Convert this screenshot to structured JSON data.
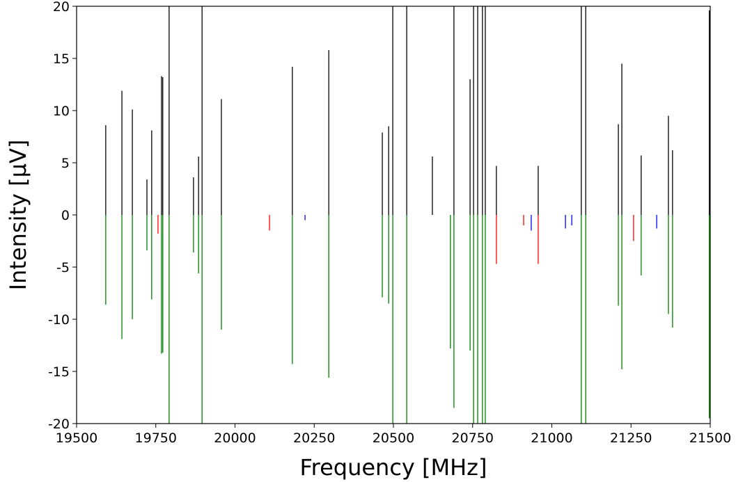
{
  "chart_data": {
    "type": "stick",
    "xlabel": "Frequency [MHz]",
    "ylabel": "Intensity [µV]",
    "xlim": [
      19500,
      21500
    ],
    "ylim": [
      -20,
      20
    ],
    "xticks": [
      19500,
      19750,
      20000,
      20250,
      20500,
      20750,
      21000,
      21250,
      21500
    ],
    "yticks": [
      -20,
      -15,
      -10,
      -5,
      0,
      5,
      10,
      15,
      20
    ],
    "series": [
      {
        "color": "#000000",
        "x": [
          19592,
          19643,
          19676,
          19722,
          19737,
          19768,
          19772,
          19792,
          19869,
          19885,
          19896,
          19957,
          20181,
          20296,
          20465,
          20485,
          20498,
          20542,
          20623,
          20691,
          20742,
          20753,
          20766,
          20781,
          20790,
          20825,
          20957,
          21093,
          21107,
          21210,
          21221,
          21282,
          21368,
          21381,
          21497
        ],
        "values": [
          8.6,
          11.9,
          10.1,
          3.4,
          8.1,
          13.3,
          13.2,
          20,
          3.6,
          5.6,
          20,
          11.1,
          14.2,
          15.8,
          7.9,
          8.5,
          20,
          20,
          5.6,
          20,
          13,
          20,
          20,
          20,
          20,
          4.7,
          4.7,
          20,
          20,
          8.7,
          14.5,
          5.7,
          9.5,
          6.2,
          19.6
        ]
      },
      {
        "color": "#008000",
        "x": [
          19592,
          19643,
          19676,
          19722,
          19737,
          19768,
          19772,
          19792,
          19869,
          19885,
          19896,
          19957,
          20181,
          20296,
          20465,
          20485,
          20498,
          20542,
          20680,
          20691,
          20742,
          20753,
          20766,
          20781,
          20790,
          21093,
          21107,
          21210,
          21221,
          21282,
          21368,
          21381,
          21497
        ],
        "values": [
          -8.6,
          -11.9,
          -10,
          -3.4,
          -8.1,
          -13.3,
          -13.2,
          -20,
          -3.6,
          -5.6,
          -20,
          -11,
          -14.3,
          -15.6,
          -7.9,
          -8.5,
          -20,
          -20,
          -12.8,
          -18.5,
          -13,
          -20,
          -20,
          -20,
          -20,
          -20,
          -20,
          -8.7,
          -14.8,
          -5.8,
          -9.5,
          -10.8,
          -19.5
        ]
      },
      {
        "color": "#ff0000",
        "x": [
          19757,
          20109,
          20825,
          20911,
          20957,
          21258
        ],
        "values": [
          -1.8,
          -1.5,
          -4.7,
          -1,
          -4.7,
          -2.5
        ]
      },
      {
        "color": "#0000ff",
        "x": [
          20221,
          20935,
          21043,
          21063,
          21331
        ],
        "values": [
          -0.5,
          -1.5,
          -1.3,
          -1,
          -1.3
        ]
      }
    ]
  }
}
